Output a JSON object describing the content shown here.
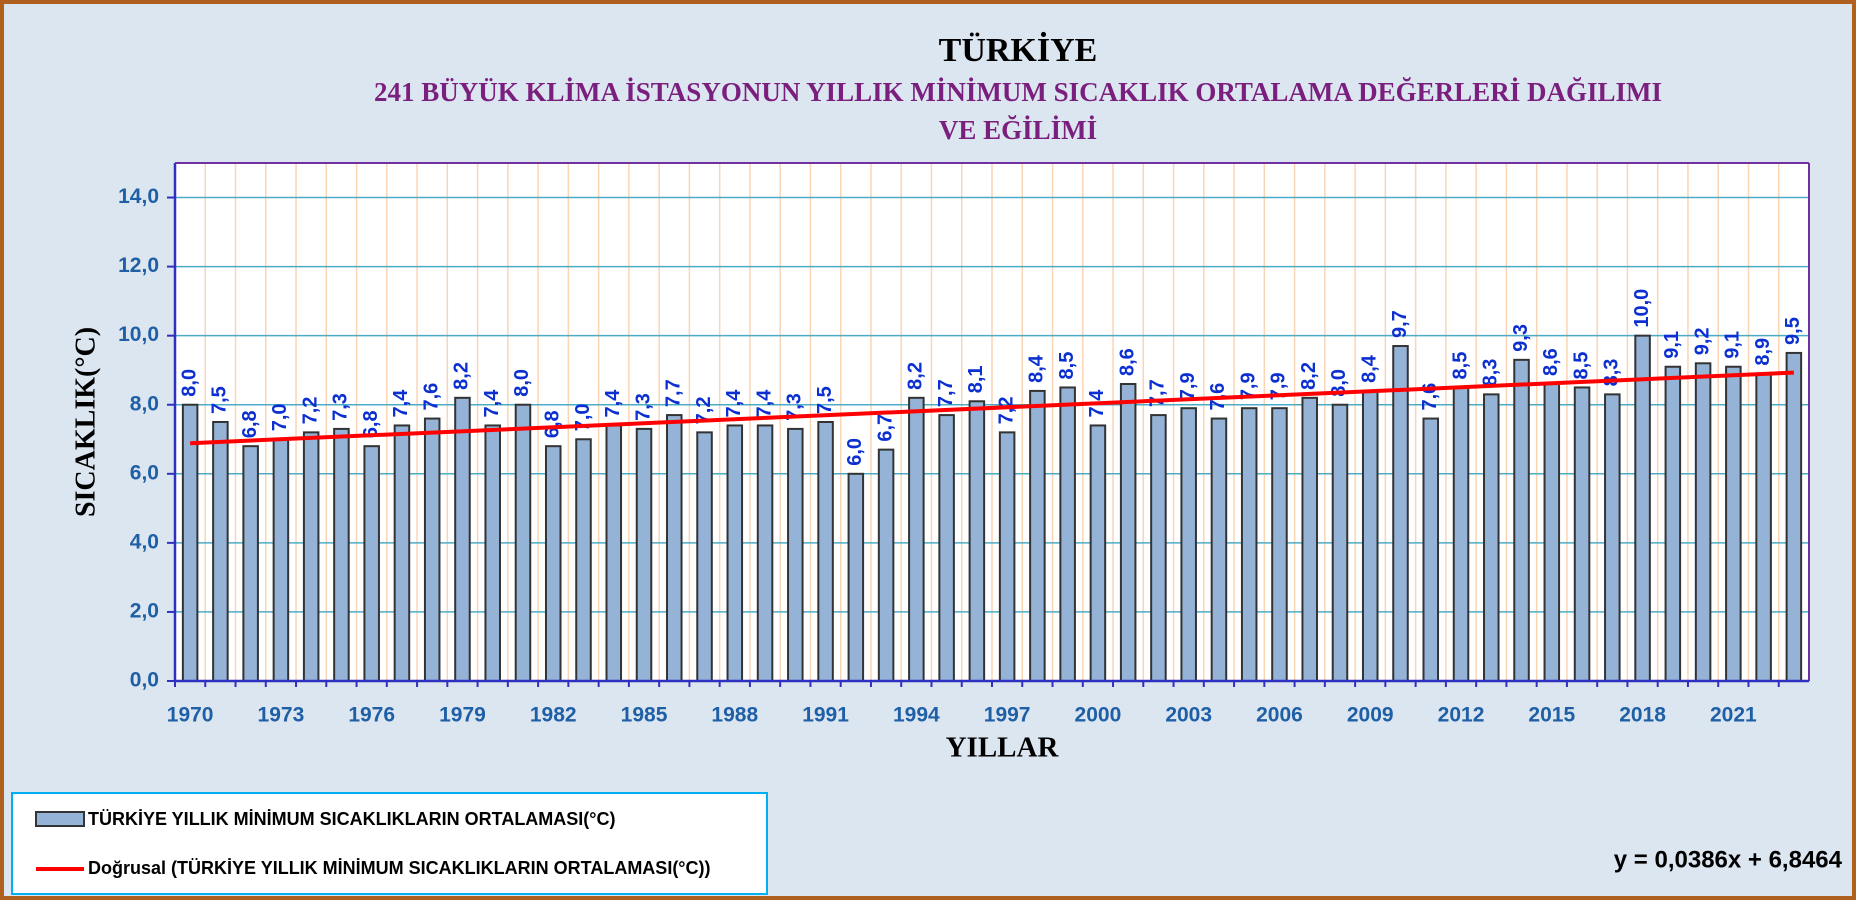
{
  "chart_data": {
    "type": "bar",
    "title": "TÜRKİYE",
    "subtitle": [
      "241 BÜYÜK KLİMA İSTASYONUN YILLIK MİNİMUM SICAKLIK ORTALAMA  DEĞERLERİ  DAĞILIMI",
      "VE EĞİLİMİ"
    ],
    "x_label": "YILLAR",
    "y_label": "SICAKLIK(°C)",
    "categories": [
      "1970",
      null,
      null,
      "1973",
      null,
      null,
      "1976",
      null,
      null,
      "1979",
      null,
      null,
      "1982",
      null,
      null,
      "1985",
      null,
      null,
      "1988",
      null,
      null,
      "1991",
      null,
      null,
      "1994",
      null,
      null,
      "1997",
      null,
      null,
      "2000",
      null,
      null,
      "2003",
      null,
      null,
      "2006",
      null,
      null,
      "2009",
      null,
      null,
      "2012",
      null,
      null,
      "2015",
      null,
      null,
      "2018",
      null,
      null,
      "2021",
      null,
      null
    ],
    "series": [
      {
        "name": "TÜRKİYE YILLIK MİNİMUM SICAKLIKLARIN ORTALAMASI(°C)",
        "color": "#95b3d7",
        "values": [
          8.0,
          7.5,
          6.8,
          7.0,
          7.2,
          7.3,
          6.8,
          7.4,
          7.6,
          8.2,
          7.4,
          8.0,
          6.8,
          7.0,
          7.4,
          7.3,
          7.7,
          7.2,
          7.4,
          7.4,
          7.3,
          7.5,
          6.0,
          6.7,
          8.2,
          7.7,
          8.1,
          7.2,
          8.4,
          8.5,
          7.4,
          8.6,
          7.7,
          7.9,
          7.6,
          7.9,
          7.9,
          8.2,
          8.0,
          8.4,
          9.7,
          7.6,
          8.5,
          8.3,
          9.3,
          8.6,
          8.5,
          8.3,
          10.0,
          9.1,
          9.2,
          9.1,
          8.9,
          9.5
        ],
        "value_labels": [
          "8,0",
          "7,5",
          "6,8",
          "7,0",
          "7,2",
          "7,3",
          "6,8",
          "7,4",
          "7,6",
          "8,2",
          "7,4",
          "8,0",
          "6,8",
          "7,0",
          "7,4",
          "7,3",
          "7,7",
          "7,2",
          "7,4",
          "7,4",
          "7,3",
          "7,5",
          "6,0",
          "6,7",
          "8,2",
          "7,7",
          "8,1",
          "7,2",
          "8,4",
          "8,5",
          "7,4",
          "8,6",
          "7,7",
          "7,9",
          "7,6",
          "7,9",
          "7,9",
          "8,2",
          "8,0",
          "8,4",
          "9,7",
          "7,6",
          "8,5",
          "8,3",
          "9,3",
          "8,6",
          "8,5",
          "8,3",
          "10,0",
          "9,1",
          "9,2",
          "9,1",
          "8,9",
          "9,5"
        ]
      }
    ],
    "trendline": {
      "name": "Doğrusal (TÜRKİYE YILLIK MİNİMUM SICAKLIKLARIN ORTALAMASI(°C))",
      "color": "#ff0000",
      "slope": 0.0386,
      "intercept": 6.8464,
      "equation": "y = 0,0386x + 6,8464"
    },
    "ylim": [
      0,
      15
    ],
    "yticks": [
      {
        "value": 0,
        "label": "0,0"
      },
      {
        "value": 2,
        "label": "2,0"
      },
      {
        "value": 4,
        "label": "4,0"
      },
      {
        "value": 6,
        "label": "6,0"
      },
      {
        "value": 8,
        "label": "8,0"
      },
      {
        "value": 10,
        "label": "10,0"
      },
      {
        "value": 12,
        "label": "12,0"
      },
      {
        "value": 14,
        "label": "14,0"
      }
    ],
    "grid": true
  }
}
